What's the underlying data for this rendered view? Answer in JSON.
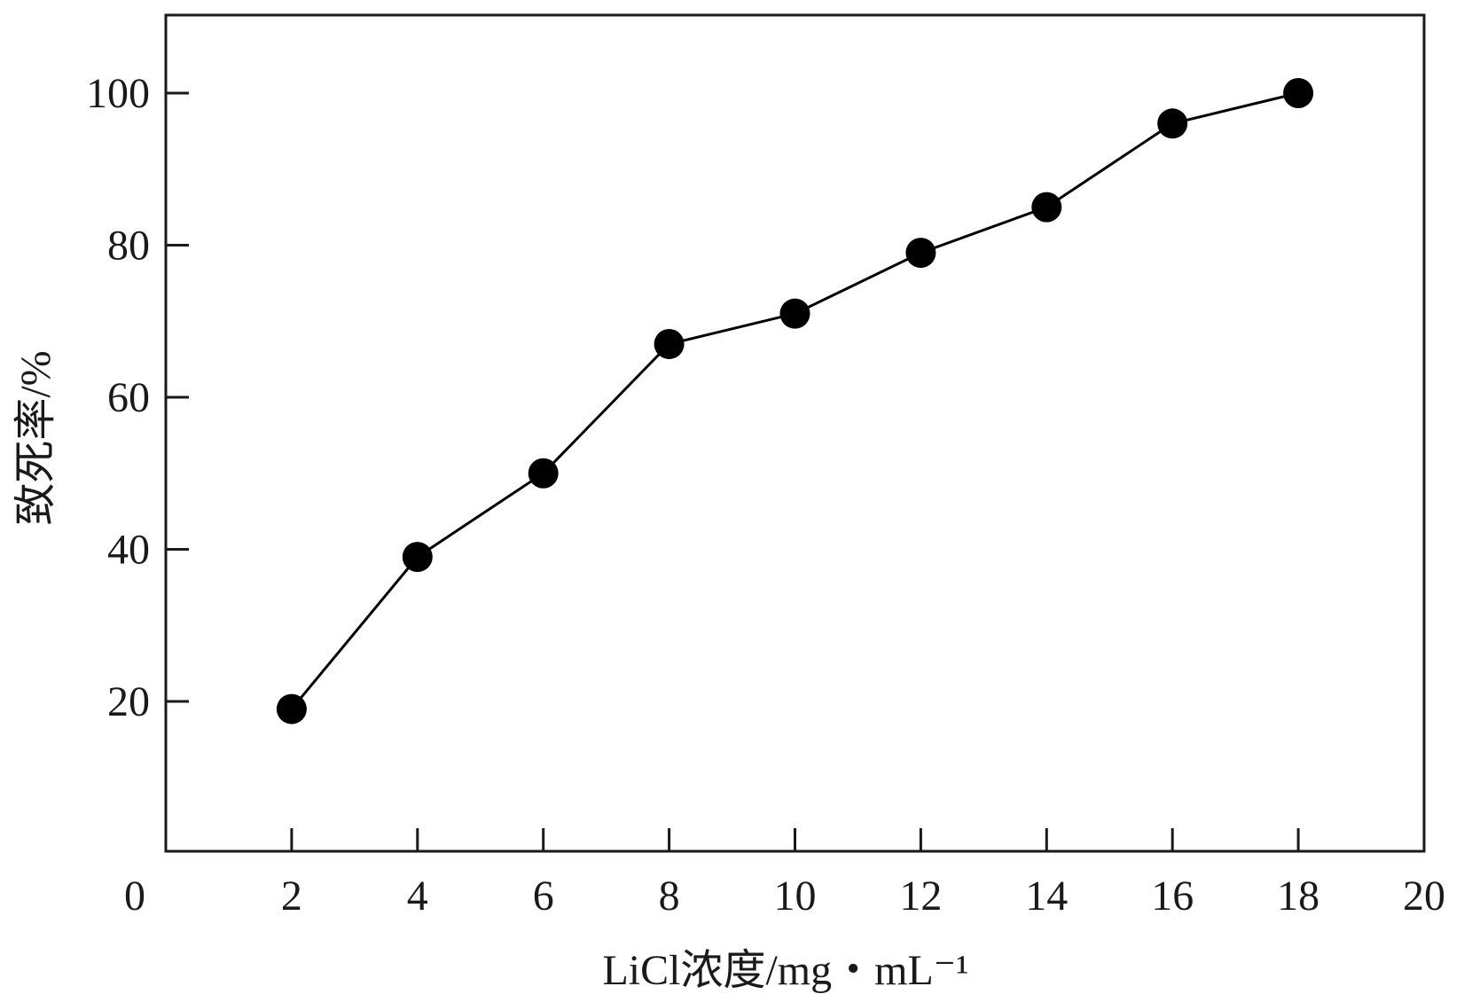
{
  "chart_data": {
    "type": "line",
    "xlabel": "LiCl浓度/mg・mL⁻¹",
    "ylabel": "致死率/%",
    "xlim": [
      0,
      20
    ],
    "ylim": [
      0,
      110
    ],
    "x_ticks": [
      0,
      2,
      4,
      6,
      8,
      10,
      12,
      14,
      16,
      18,
      20
    ],
    "x_tick_labels": [
      "0",
      "2",
      "4",
      "6",
      "8",
      "10",
      "12",
      "14",
      "16",
      "18",
      "20"
    ],
    "y_ticks": [
      20,
      40,
      60,
      80,
      100
    ],
    "y_tick_labels": [
      "20",
      "40",
      "60",
      "80",
      "100"
    ],
    "grid": false,
    "legend": "none",
    "series": [
      {
        "x": [
          2,
          4,
          6,
          8,
          10,
          12,
          14,
          16,
          18
        ],
        "y": [
          19,
          39,
          50,
          67,
          71,
          79,
          85,
          96,
          100
        ],
        "color": "#000000",
        "marker": "filled-circle"
      }
    ]
  }
}
